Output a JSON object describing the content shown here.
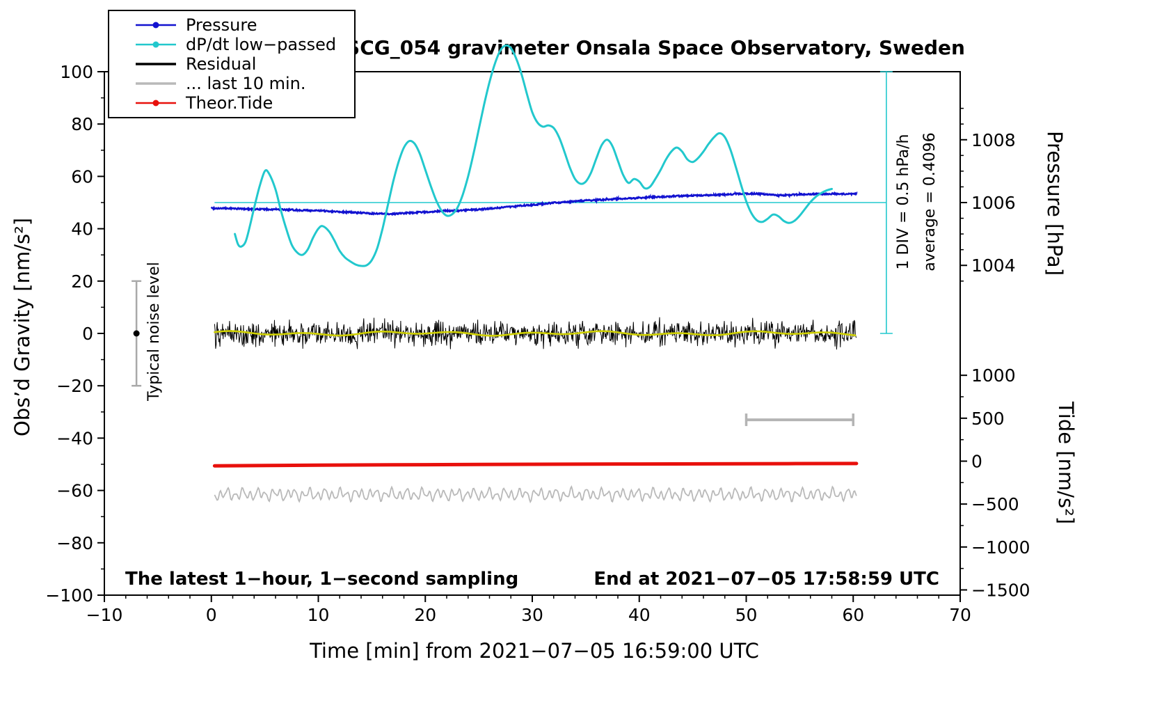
{
  "annotations": {
    "noise_label": "Typical noise level",
    "div_label": "1 DIV = 0.5 hPa/h",
    "avg_label": "average = 0.4096",
    "sampling_label": "The latest 1−hour, 1−second sampling",
    "end_label": "End at 2021−07−05 17:58:59 UTC"
  },
  "legend": {
    "items": [
      {
        "label": "Pressure",
        "color": "#1212d0",
        "style": "line-dot"
      },
      {
        "label": "dP/dt low−passed",
        "color": "#22c8cd",
        "style": "line-dot"
      },
      {
        "label": "Residual",
        "color": "#000000",
        "style": "line"
      },
      {
        "label": "... last 10 min.",
        "color": "#b9b9b9",
        "style": "line"
      },
      {
        "label": "Theor.Tide",
        "color": "#e8100c",
        "style": "line-dot"
      }
    ]
  },
  "axes": {
    "x": {
      "min": -10,
      "max": 70,
      "minor_step": 2,
      "major": [
        {
          "v": -10,
          "label": "−10"
        },
        {
          "v": 0,
          "label": "0"
        },
        {
          "v": 10,
          "label": "10"
        },
        {
          "v": 20,
          "label": "20"
        },
        {
          "v": 30,
          "label": "30"
        },
        {
          "v": 40,
          "label": "40"
        },
        {
          "v": 50,
          "label": "50"
        },
        {
          "v": 60,
          "label": "60"
        },
        {
          "v": 70,
          "label": "70"
        }
      ]
    },
    "y_left": {
      "min": -100,
      "max": 100,
      "minor_step": 10,
      "major": [
        {
          "v": -100,
          "label": "−100"
        },
        {
          "v": -80,
          "label": "−80"
        },
        {
          "v": -60,
          "label": "−60"
        },
        {
          "v": -40,
          "label": "−40"
        },
        {
          "v": -20,
          "label": "−20"
        },
        {
          "v": 0,
          "label": "0"
        },
        {
          "v": 20,
          "label": "20"
        },
        {
          "v": 40,
          "label": "40"
        },
        {
          "v": 60,
          "label": "60"
        },
        {
          "v": 80,
          "label": "80"
        },
        {
          "v": 100,
          "label": "100"
        }
      ]
    },
    "y_right_pressure": {
      "ticks": [
        {
          "at": 74,
          "label": "1008"
        },
        {
          "at": 50,
          "label": "1006"
        },
        {
          "at": 26,
          "label": "1004"
        }
      ],
      "minor_at": [
        20,
        32,
        38,
        44,
        56,
        62,
        68,
        80,
        86
      ]
    },
    "y_right_tide": {
      "ticks": [
        {
          "at": -16,
          "label": "1000"
        },
        {
          "at": -32.4,
          "label": "500"
        },
        {
          "at": -48.8,
          "label": "0"
        },
        {
          "at": -65.2,
          "label": "−500"
        },
        {
          "at": -81.6,
          "label": "−1000"
        },
        {
          "at": -98,
          "label": "−1500"
        }
      ],
      "minor_at": [
        -24.2,
        -40.6,
        -57,
        -73.4,
        -89.8
      ]
    }
  },
  "chart_data": {
    "type": "line",
    "title": "SCG_054 gravimeter Onsala Space Observatory, Sweden",
    "xlabel": "Time [min] from 2021−07−05 16:59:00 UTC",
    "ylabel_left": "Obs’d Gravity [nm/s²]",
    "ylabel_right_top": "Pressure [hPa]",
    "ylabel_right_bottom": "Tide [nm/s²]",
    "xlim": [
      -10,
      70
    ],
    "ylim_left": [
      -100,
      100
    ],
    "grid": false,
    "legend_position": "top-left",
    "pressure_axis_mapping": {
      "hpa_ref": 1006,
      "left_axis_y_ref": 50,
      "left_axis_units_per_hpa": 12
    },
    "tide_axis_mapping": {
      "tide_ref": 0,
      "left_axis_y_ref": -48.8,
      "left_axis_units_per_tide_unit": 0.0328
    },
    "reference": {
      "average_line_y": 50,
      "average_value_hpa_per_h": 0.4096,
      "div_scale": "1 DIV = 0.5 hPa/h"
    },
    "annotations_markers": {
      "noise_marker": {
        "x": -7,
        "y": 0,
        "error": 20
      },
      "div_bar": {
        "x": 63.1,
        "y0": 0,
        "y1": 100
      },
      "gray_scale_bar": {
        "x0": 50,
        "x1": 60,
        "y": -33
      }
    },
    "series": [
      {
        "name": "Pressure",
        "color": "#1212d0",
        "units": "hPa",
        "axis": "right-pressure",
        "points": [
          [
            0,
            1005.82
          ],
          [
            2,
            1005.81
          ],
          [
            4,
            1005.79
          ],
          [
            6,
            1005.78
          ],
          [
            8,
            1005.76
          ],
          [
            10,
            1005.74
          ],
          [
            12,
            1005.71
          ],
          [
            14,
            1005.67
          ],
          [
            15,
            1005.65
          ],
          [
            16,
            1005.64
          ],
          [
            17,
            1005.64
          ],
          [
            18,
            1005.66
          ],
          [
            19,
            1005.68
          ],
          [
            20,
            1005.7
          ],
          [
            21,
            1005.72
          ],
          [
            22,
            1005.74
          ],
          [
            23,
            1005.74
          ],
          [
            24,
            1005.76
          ],
          [
            25,
            1005.78
          ],
          [
            26,
            1005.81
          ],
          [
            27,
            1005.84
          ],
          [
            28,
            1005.87
          ],
          [
            29,
            1005.9
          ],
          [
            30,
            1005.93
          ],
          [
            31,
            1005.96
          ],
          [
            32,
            1005.99
          ],
          [
            33,
            1006.01
          ],
          [
            34,
            1006.04
          ],
          [
            35,
            1006.06
          ],
          [
            36,
            1006.08
          ],
          [
            37,
            1006.1
          ],
          [
            38,
            1006.12
          ],
          [
            39,
            1006.13
          ],
          [
            40,
            1006.15
          ],
          [
            41,
            1006.17
          ],
          [
            42,
            1006.18
          ],
          [
            43,
            1006.2
          ],
          [
            44,
            1006.21
          ],
          [
            45,
            1006.22
          ],
          [
            46,
            1006.23
          ],
          [
            47,
            1006.24
          ],
          [
            48,
            1006.26
          ],
          [
            49,
            1006.27
          ],
          [
            50,
            1006.28
          ],
          [
            51,
            1006.28
          ],
          [
            52,
            1006.26
          ],
          [
            53,
            1006.23
          ],
          [
            54,
            1006.24
          ],
          [
            55,
            1006.26
          ],
          [
            56,
            1006.27
          ],
          [
            57,
            1006.27
          ],
          [
            58,
            1006.28
          ],
          [
            59,
            1006.27
          ],
          [
            60.3,
            1006.28
          ]
        ]
      },
      {
        "name": "dP/dt low−passed",
        "color": "#22c8cd",
        "units": "left-axis equivalent nm/s²",
        "points": [
          [
            2.2,
            38
          ],
          [
            2.5,
            34
          ],
          [
            2.8,
            33.2
          ],
          [
            3.2,
            35
          ],
          [
            3.6,
            41
          ],
          [
            4,
            48
          ],
          [
            4.5,
            56
          ],
          [
            5,
            62
          ],
          [
            5.4,
            61
          ],
          [
            6,
            55
          ],
          [
            6.5,
            47
          ],
          [
            7,
            40
          ],
          [
            7.5,
            34
          ],
          [
            8,
            31
          ],
          [
            8.5,
            30
          ],
          [
            9,
            32
          ],
          [
            9.5,
            36.5
          ],
          [
            10,
            40
          ],
          [
            10.4,
            41
          ],
          [
            11,
            39
          ],
          [
            11.5,
            35.5
          ],
          [
            12,
            31.5
          ],
          [
            12.5,
            29
          ],
          [
            13,
            27.5
          ],
          [
            13.5,
            26.3
          ],
          [
            14,
            25.8
          ],
          [
            14.5,
            26
          ],
          [
            15,
            28
          ],
          [
            15.5,
            32.5
          ],
          [
            16,
            40
          ],
          [
            16.5,
            49
          ],
          [
            17,
            58
          ],
          [
            17.5,
            65.5
          ],
          [
            18,
            71
          ],
          [
            18.5,
            73.5
          ],
          [
            19,
            72.5
          ],
          [
            19.5,
            68.5
          ],
          [
            20,
            62.5
          ],
          [
            20.5,
            56.5
          ],
          [
            21,
            51
          ],
          [
            21.5,
            47
          ],
          [
            22,
            45
          ],
          [
            22.5,
            45.5
          ],
          [
            23,
            48
          ],
          [
            23.5,
            53
          ],
          [
            24,
            60
          ],
          [
            24.5,
            68.5
          ],
          [
            25,
            78
          ],
          [
            25.5,
            87.5
          ],
          [
            26,
            96
          ],
          [
            26.5,
            103
          ],
          [
            27,
            108
          ],
          [
            27.5,
            110
          ],
          [
            28,
            109
          ],
          [
            28.5,
            105
          ],
          [
            29,
            99
          ],
          [
            29.5,
            91.5
          ],
          [
            30,
            84.5
          ],
          [
            30.5,
            80.5
          ],
          [
            31,
            79
          ],
          [
            31.5,
            79.5
          ],
          [
            32,
            78.5
          ],
          [
            32.5,
            75
          ],
          [
            33,
            69.5
          ],
          [
            33.5,
            63.5
          ],
          [
            34,
            59
          ],
          [
            34.5,
            57.2
          ],
          [
            35,
            58
          ],
          [
            35.5,
            61.5
          ],
          [
            36,
            67
          ],
          [
            36.5,
            72
          ],
          [
            37,
            74
          ],
          [
            37.5,
            71.5
          ],
          [
            38,
            66
          ],
          [
            38.5,
            60.5
          ],
          [
            39,
            57.5
          ],
          [
            39.5,
            59
          ],
          [
            40,
            58
          ],
          [
            40.5,
            55.5
          ],
          [
            41,
            56
          ],
          [
            41.5,
            59
          ],
          [
            42,
            62.5
          ],
          [
            42.5,
            66.5
          ],
          [
            43,
            69.5
          ],
          [
            43.5,
            71
          ],
          [
            44,
            69.5
          ],
          [
            44.5,
            66.5
          ],
          [
            45,
            65.5
          ],
          [
            45.5,
            67
          ],
          [
            46,
            69.5
          ],
          [
            46.5,
            72.5
          ],
          [
            47,
            75
          ],
          [
            47.5,
            76.5
          ],
          [
            48,
            75
          ],
          [
            48.5,
            70.5
          ],
          [
            49,
            64
          ],
          [
            49.5,
            57
          ],
          [
            50,
            50.5
          ],
          [
            50.5,
            45.8
          ],
          [
            51,
            43.2
          ],
          [
            51.5,
            42.6
          ],
          [
            52,
            43.8
          ],
          [
            52.5,
            45.4
          ],
          [
            53,
            44.8
          ],
          [
            53.5,
            43
          ],
          [
            54,
            42.2
          ],
          [
            54.5,
            43
          ],
          [
            55,
            45
          ],
          [
            55.5,
            47.6
          ],
          [
            56,
            50.2
          ],
          [
            56.5,
            52.2
          ],
          [
            57,
            53.6
          ],
          [
            57.5,
            54.6
          ],
          [
            58,
            55.2
          ]
        ]
      },
      {
        "name": "Residual",
        "color": "#000000",
        "style": "high-frequency noise",
        "mean": 0,
        "spike_amplitude": 7,
        "x_range": [
          0.3,
          60.3
        ]
      },
      {
        "name": "Residual low-passed",
        "color": "#cfd000",
        "mean": 0,
        "components": [
          [
            0.5,
            0.9,
            0.0
          ],
          [
            0.4,
            0.37,
            1.0
          ]
        ]
      },
      {
        "name": "... last 10 min.",
        "color": "#b9b9b9",
        "mean": -61.5,
        "x_range": [
          0.3,
          60.3
        ],
        "components": [
          [
            1.5,
            9.0,
            0.3
          ],
          [
            0.9,
            4.1,
            2.0
          ],
          [
            0.55,
            15.7,
            1.0
          ]
        ]
      },
      {
        "name": "Theor.Tide",
        "color": "#e8100c",
        "units": "left-axis nm/s²",
        "points": [
          [
            0.3,
            -50.6
          ],
          [
            10,
            -50.35
          ],
          [
            20,
            -50.15
          ],
          [
            30,
            -50.0
          ],
          [
            40,
            -49.9
          ],
          [
            50,
            -49.8
          ],
          [
            60.3,
            -49.7
          ]
        ]
      }
    ]
  }
}
